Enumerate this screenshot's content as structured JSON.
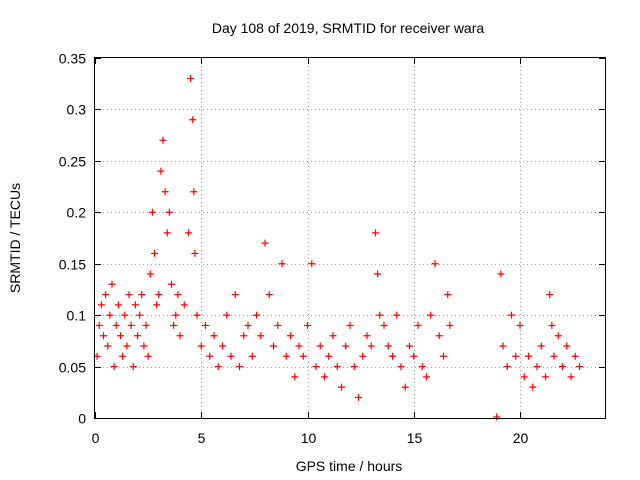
{
  "chart_data": {
    "type": "scatter",
    "title": "Day 108 of 2019, SRMTID for receiver wara",
    "xlabel": "GPS time / hours",
    "ylabel": "SRMTID / TECUs",
    "xlim": [
      0,
      24
    ],
    "ylim": [
      0,
      0.35
    ],
    "x_ticks": [
      0,
      5,
      10,
      15,
      20
    ],
    "x_tick_labels": [
      "0",
      "5",
      "10",
      "15",
      "20"
    ],
    "y_ticks": [
      0,
      0.05,
      0.1,
      0.15,
      0.2,
      0.25,
      0.3,
      0.35
    ],
    "y_tick_labels": [
      "0",
      "0.05",
      "0.1",
      "0.15",
      "0.2",
      "0.25",
      "0.3",
      "0.35"
    ],
    "grid": true,
    "marker": "plus",
    "series_color": "#ff0000",
    "series": [
      {
        "name": "SRMTID",
        "points": [
          [
            0.1,
            0.06
          ],
          [
            0.2,
            0.09
          ],
          [
            0.3,
            0.11
          ],
          [
            0.4,
            0.08
          ],
          [
            0.5,
            0.12
          ],
          [
            0.6,
            0.07
          ],
          [
            0.7,
            0.1
          ],
          [
            0.8,
            0.13
          ],
          [
            0.9,
            0.05
          ],
          [
            1.0,
            0.09
          ],
          [
            1.1,
            0.11
          ],
          [
            1.2,
            0.08
          ],
          [
            1.3,
            0.06
          ],
          [
            1.4,
            0.1
          ],
          [
            1.5,
            0.07
          ],
          [
            1.6,
            0.12
          ],
          [
            1.7,
            0.09
          ],
          [
            1.8,
            0.05
          ],
          [
            1.9,
            0.11
          ],
          [
            2.0,
            0.08
          ],
          [
            2.1,
            0.1
          ],
          [
            2.2,
            0.12
          ],
          [
            2.3,
            0.07
          ],
          [
            2.4,
            0.09
          ],
          [
            2.5,
            0.06
          ],
          [
            2.6,
            0.14
          ],
          [
            2.7,
            0.2
          ],
          [
            2.8,
            0.16
          ],
          [
            2.9,
            0.11
          ],
          [
            3.0,
            0.12
          ],
          [
            3.1,
            0.24
          ],
          [
            3.2,
            0.27
          ],
          [
            3.3,
            0.22
          ],
          [
            3.4,
            0.18
          ],
          [
            3.5,
            0.2
          ],
          [
            3.6,
            0.13
          ],
          [
            3.7,
            0.09
          ],
          [
            3.8,
            0.1
          ],
          [
            3.9,
            0.12
          ],
          [
            4.0,
            0.08
          ],
          [
            4.2,
            0.11
          ],
          [
            4.4,
            0.18
          ],
          [
            4.5,
            0.33
          ],
          [
            4.6,
            0.29
          ],
          [
            4.65,
            0.22
          ],
          [
            4.7,
            0.16
          ],
          [
            4.8,
            0.1
          ],
          [
            5.0,
            0.07
          ],
          [
            5.2,
            0.09
          ],
          [
            5.4,
            0.06
          ],
          [
            5.6,
            0.08
          ],
          [
            5.8,
            0.05
          ],
          [
            6.0,
            0.07
          ],
          [
            6.2,
            0.1
          ],
          [
            6.4,
            0.06
          ],
          [
            6.6,
            0.12
          ],
          [
            6.8,
            0.05
          ],
          [
            7.0,
            0.08
          ],
          [
            7.2,
            0.09
          ],
          [
            7.4,
            0.06
          ],
          [
            7.6,
            0.1
          ],
          [
            7.8,
            0.08
          ],
          [
            8.0,
            0.17
          ],
          [
            8.2,
            0.12
          ],
          [
            8.4,
            0.07
          ],
          [
            8.6,
            0.09
          ],
          [
            8.8,
            0.15
          ],
          [
            9.0,
            0.06
          ],
          [
            9.2,
            0.08
          ],
          [
            9.4,
            0.04
          ],
          [
            9.6,
            0.07
          ],
          [
            9.8,
            0.06
          ],
          [
            10.0,
            0.09
          ],
          [
            10.2,
            0.15
          ],
          [
            10.4,
            0.05
          ],
          [
            10.6,
            0.07
          ],
          [
            10.8,
            0.04
          ],
          [
            11.0,
            0.06
          ],
          [
            11.2,
            0.08
          ],
          [
            11.4,
            0.05
          ],
          [
            11.6,
            0.03
          ],
          [
            11.8,
            0.07
          ],
          [
            12.0,
            0.09
          ],
          [
            12.2,
            0.05
          ],
          [
            12.4,
            0.02
          ],
          [
            12.6,
            0.06
          ],
          [
            12.8,
            0.08
          ],
          [
            13.0,
            0.07
          ],
          [
            13.2,
            0.18
          ],
          [
            13.3,
            0.14
          ],
          [
            13.4,
            0.1
          ],
          [
            13.6,
            0.09
          ],
          [
            13.8,
            0.07
          ],
          [
            14.0,
            0.06
          ],
          [
            14.2,
            0.1
          ],
          [
            14.4,
            0.05
          ],
          [
            14.6,
            0.03
          ],
          [
            14.8,
            0.07
          ],
          [
            15.0,
            0.06
          ],
          [
            15.2,
            0.09
          ],
          [
            15.4,
            0.05
          ],
          [
            15.6,
            0.04
          ],
          [
            15.8,
            0.1
          ],
          [
            16.0,
            0.15
          ],
          [
            16.2,
            0.08
          ],
          [
            16.4,
            0.06
          ],
          [
            16.6,
            0.12
          ],
          [
            16.7,
            0.09
          ],
          [
            18.9,
            0.0
          ],
          [
            19.1,
            0.14
          ],
          [
            19.2,
            0.07
          ],
          [
            19.4,
            0.05
          ],
          [
            19.6,
            0.1
          ],
          [
            19.8,
            0.06
          ],
          [
            20.0,
            0.09
          ],
          [
            20.2,
            0.04
          ],
          [
            20.4,
            0.06
          ],
          [
            20.6,
            0.03
          ],
          [
            20.8,
            0.05
          ],
          [
            21.0,
            0.07
          ],
          [
            21.2,
            0.04
          ],
          [
            21.4,
            0.12
          ],
          [
            21.5,
            0.09
          ],
          [
            21.6,
            0.06
          ],
          [
            21.8,
            0.08
          ],
          [
            22.0,
            0.05
          ],
          [
            22.2,
            0.07
          ],
          [
            22.4,
            0.04
          ],
          [
            22.6,
            0.06
          ],
          [
            22.8,
            0.05
          ]
        ]
      }
    ]
  }
}
